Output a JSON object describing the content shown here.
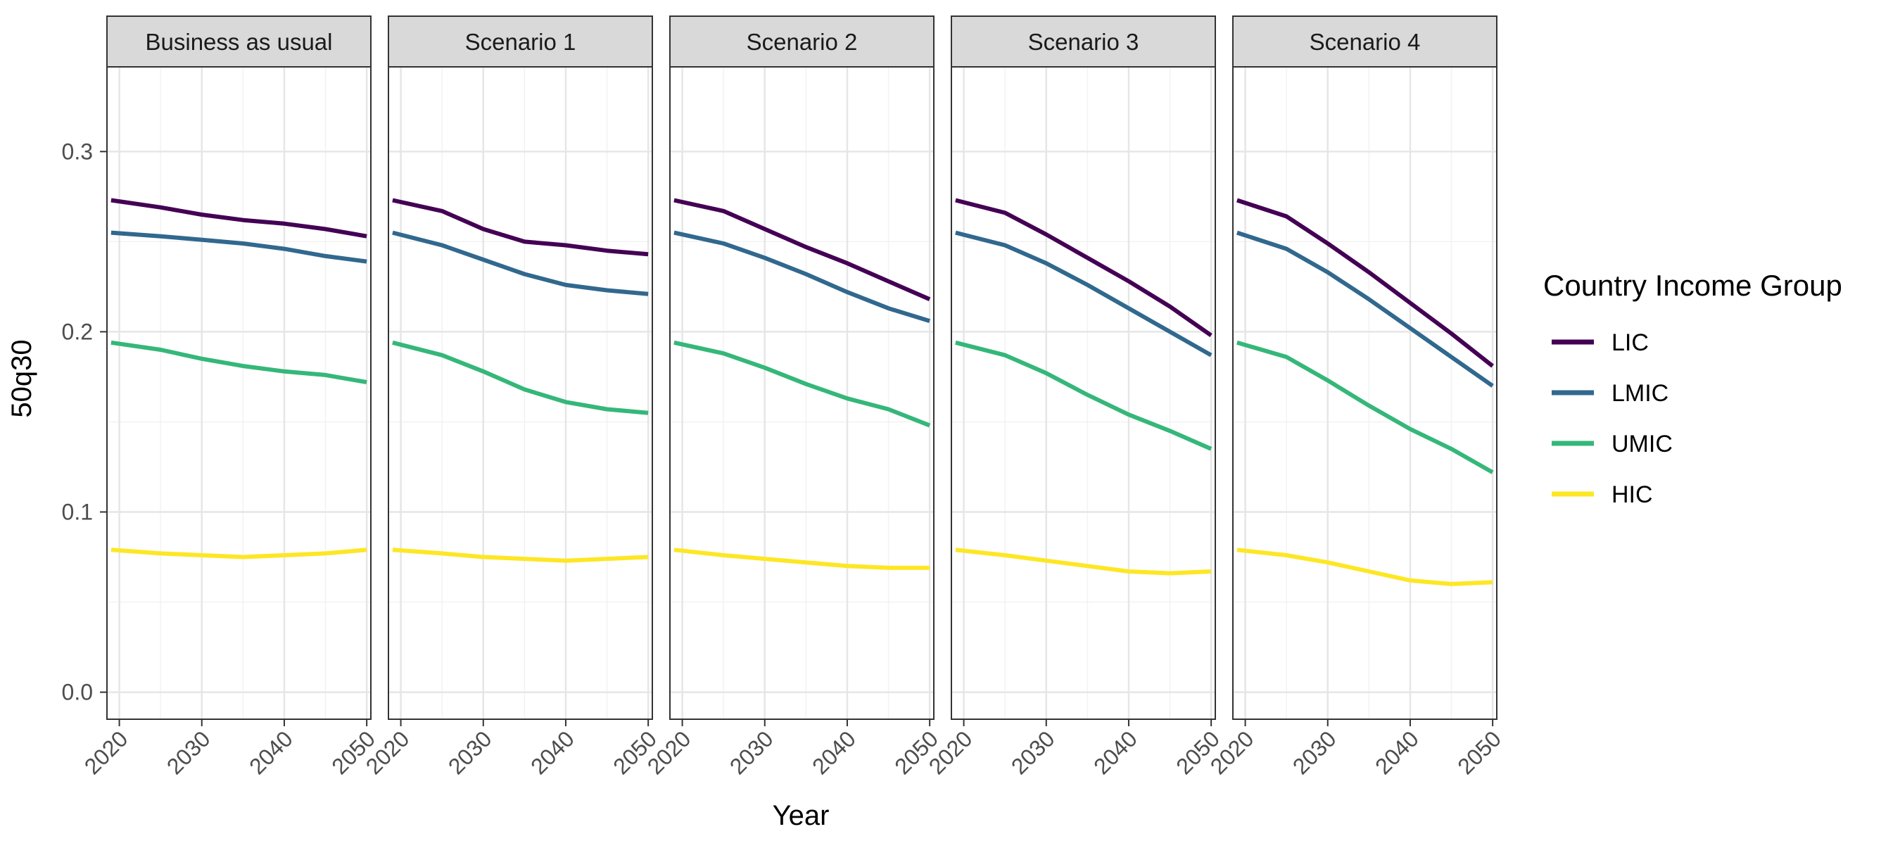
{
  "chart_data": {
    "type": "line",
    "xlabel": "Year",
    "ylabel": "50q30",
    "xlim": [
      2018.5,
      2050.5
    ],
    "ylim": [
      -0.015,
      0.347
    ],
    "x_ticks": [
      2020,
      2030,
      2040,
      2050
    ],
    "x_tick_labels": [
      "2020",
      "2030",
      "2040",
      "2050"
    ],
    "y_ticks": [
      0.0,
      0.1,
      0.2,
      0.3
    ],
    "y_tick_labels": [
      "0.0",
      "0.1",
      "0.2",
      "0.3"
    ],
    "grid": true,
    "legend": {
      "title": "Country Income Group",
      "position": "right",
      "entries": [
        {
          "name": "LIC",
          "color": "#440154"
        },
        {
          "name": "LMIC",
          "color": "#31688e"
        },
        {
          "name": "UMIC",
          "color": "#35b779"
        },
        {
          "name": "HIC",
          "color": "#fde725"
        }
      ]
    },
    "x": [
      2019,
      2025,
      2030,
      2035,
      2040,
      2045,
      2050
    ],
    "panels": [
      {
        "title": "Business as usual",
        "series": [
          {
            "name": "LIC",
            "values": [
              0.273,
              0.269,
              0.265,
              0.262,
              0.26,
              0.257,
              0.253
            ]
          },
          {
            "name": "LMIC",
            "values": [
              0.255,
              0.253,
              0.251,
              0.249,
              0.246,
              0.242,
              0.239
            ]
          },
          {
            "name": "UMIC",
            "values": [
              0.194,
              0.19,
              0.185,
              0.181,
              0.178,
              0.176,
              0.172
            ]
          },
          {
            "name": "HIC",
            "values": [
              0.079,
              0.077,
              0.076,
              0.075,
              0.076,
              0.077,
              0.079
            ]
          }
        ]
      },
      {
        "title": "Scenario 1",
        "series": [
          {
            "name": "LIC",
            "values": [
              0.273,
              0.267,
              0.257,
              0.25,
              0.248,
              0.245,
              0.243
            ]
          },
          {
            "name": "LMIC",
            "values": [
              0.255,
              0.248,
              0.24,
              0.232,
              0.226,
              0.223,
              0.221
            ]
          },
          {
            "name": "UMIC",
            "values": [
              0.194,
              0.187,
              0.178,
              0.168,
              0.161,
              0.157,
              0.155
            ]
          },
          {
            "name": "HIC",
            "values": [
              0.079,
              0.077,
              0.075,
              0.074,
              0.073,
              0.074,
              0.075
            ]
          }
        ]
      },
      {
        "title": "Scenario 2",
        "series": [
          {
            "name": "LIC",
            "values": [
              0.273,
              0.267,
              0.257,
              0.247,
              0.238,
              0.228,
              0.218
            ]
          },
          {
            "name": "LMIC",
            "values": [
              0.255,
              0.249,
              0.241,
              0.232,
              0.222,
              0.213,
              0.206
            ]
          },
          {
            "name": "UMIC",
            "values": [
              0.194,
              0.188,
              0.18,
              0.171,
              0.163,
              0.157,
              0.148
            ]
          },
          {
            "name": "HIC",
            "values": [
              0.079,
              0.076,
              0.074,
              0.072,
              0.07,
              0.069,
              0.069
            ]
          }
        ]
      },
      {
        "title": "Scenario 3",
        "series": [
          {
            "name": "LIC",
            "values": [
              0.273,
              0.266,
              0.254,
              0.241,
              0.228,
              0.214,
              0.198
            ]
          },
          {
            "name": "LMIC",
            "values": [
              0.255,
              0.248,
              0.238,
              0.226,
              0.213,
              0.2,
              0.187
            ]
          },
          {
            "name": "UMIC",
            "values": [
              0.194,
              0.187,
              0.177,
              0.165,
              0.154,
              0.145,
              0.135
            ]
          },
          {
            "name": "HIC",
            "values": [
              0.079,
              0.076,
              0.073,
              0.07,
              0.067,
              0.066,
              0.067
            ]
          }
        ]
      },
      {
        "title": "Scenario 4",
        "series": [
          {
            "name": "LIC",
            "values": [
              0.273,
              0.264,
              0.249,
              0.233,
              0.216,
              0.199,
              0.181
            ]
          },
          {
            "name": "LMIC",
            "values": [
              0.255,
              0.246,
              0.233,
              0.218,
              0.202,
              0.186,
              0.17
            ]
          },
          {
            "name": "UMIC",
            "values": [
              0.194,
              0.186,
              0.173,
              0.159,
              0.146,
              0.135,
              0.122
            ]
          },
          {
            "name": "HIC",
            "values": [
              0.079,
              0.076,
              0.072,
              0.067,
              0.062,
              0.06,
              0.061
            ]
          }
        ]
      }
    ]
  }
}
